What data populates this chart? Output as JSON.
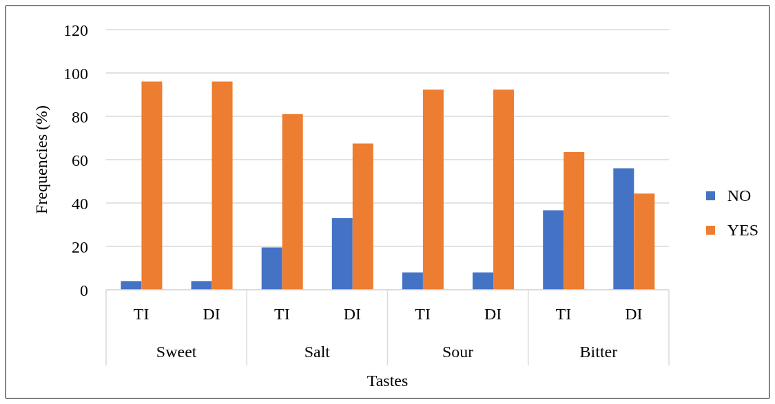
{
  "chart_data": {
    "type": "bar",
    "xlabel": "Tastes",
    "ylabel": "Frequencies (%)",
    "categories": [
      "TI",
      "DI",
      "TI",
      "DI",
      "TI",
      "DI",
      "TI",
      "DI"
    ],
    "annotations": [
      "Sweet",
      "Salt",
      "Sour",
      "Bitter"
    ],
    "series": [
      {
        "name": "NO",
        "color": "#4472c4",
        "values": [
          4,
          4,
          19.5,
          33,
          8,
          8,
          36.7,
          56
        ]
      },
      {
        "name": "YES",
        "color": "#ed7d31",
        "values": [
          96,
          96,
          81,
          67.5,
          92.3,
          92.3,
          63.5,
          44.4
        ]
      }
    ],
    "ylim": [
      0,
      120
    ],
    "yticks": [
      0,
      20,
      40,
      60,
      80,
      100,
      120
    ],
    "grid": "y",
    "legend": "right"
  }
}
